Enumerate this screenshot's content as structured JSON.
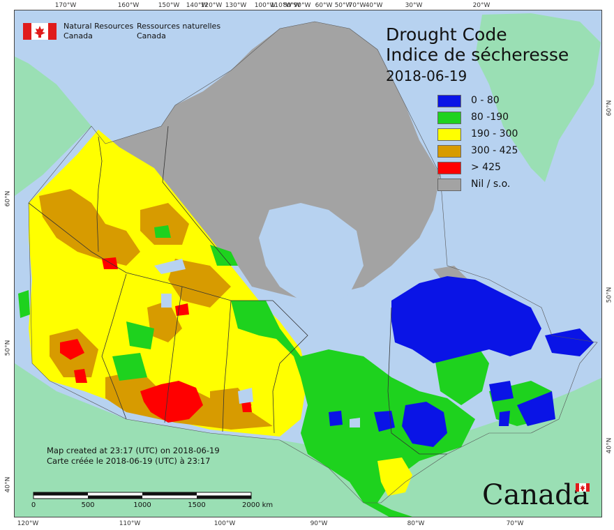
{
  "map": {
    "title_en": "Drought Code",
    "title_fr": "Indice de sécheresse",
    "date": "2018-06-19",
    "legend": [
      {
        "label": "0 - 80",
        "color": "#0a14e6"
      },
      {
        "label": "80 -190",
        "color": "#1ed21e"
      },
      {
        "label": "190 - 300",
        "color": "#ffff00"
      },
      {
        "label": "300 - 425",
        "color": "#d79b00"
      },
      {
        "label": "> 425",
        "color": "#ff0000"
      },
      {
        "label": "Nil / s.o.",
        "color": "#a3a3a3"
      }
    ],
    "colors": {
      "ocean": "#b7d2f0",
      "land_outside": "#9adfb4",
      "no_data": "#a3a3a3",
      "border": "#333333"
    }
  },
  "agency": {
    "name_en_line1": "Natural Resources",
    "name_en_line2": "Canada",
    "name_fr_line1": "Ressources naturelles",
    "name_fr_line2": "Canada"
  },
  "credit": {
    "line_en": "Map created at 23:17 (UTC) on 2018-06-19",
    "line_fr": "Carte créée le 2018-06-19 (UTC) à 23:17"
  },
  "scalebar": {
    "labels": [
      "0",
      "500",
      "1000",
      "1500",
      "2000 km"
    ]
  },
  "wordmark": "Canada",
  "graticule": {
    "top_labels": [
      "170°W",
      "160°W",
      "150°W",
      "140°W",
      "120°W",
      "130°W",
      "100°W",
      "110°W",
      "80°W",
      "90°W",
      "60°W",
      "50°W",
      "70°W",
      "40°W",
      "30°W",
      "20°W"
    ],
    "bottom_labels": [
      "120°W",
      "110°W",
      "100°W",
      "90°W",
      "80°W",
      "70°W"
    ],
    "left_labels": [
      "60°N",
      "50°N",
      "40°N"
    ],
    "right_labels": [
      "60°N",
      "50°N",
      "40°N"
    ]
  }
}
